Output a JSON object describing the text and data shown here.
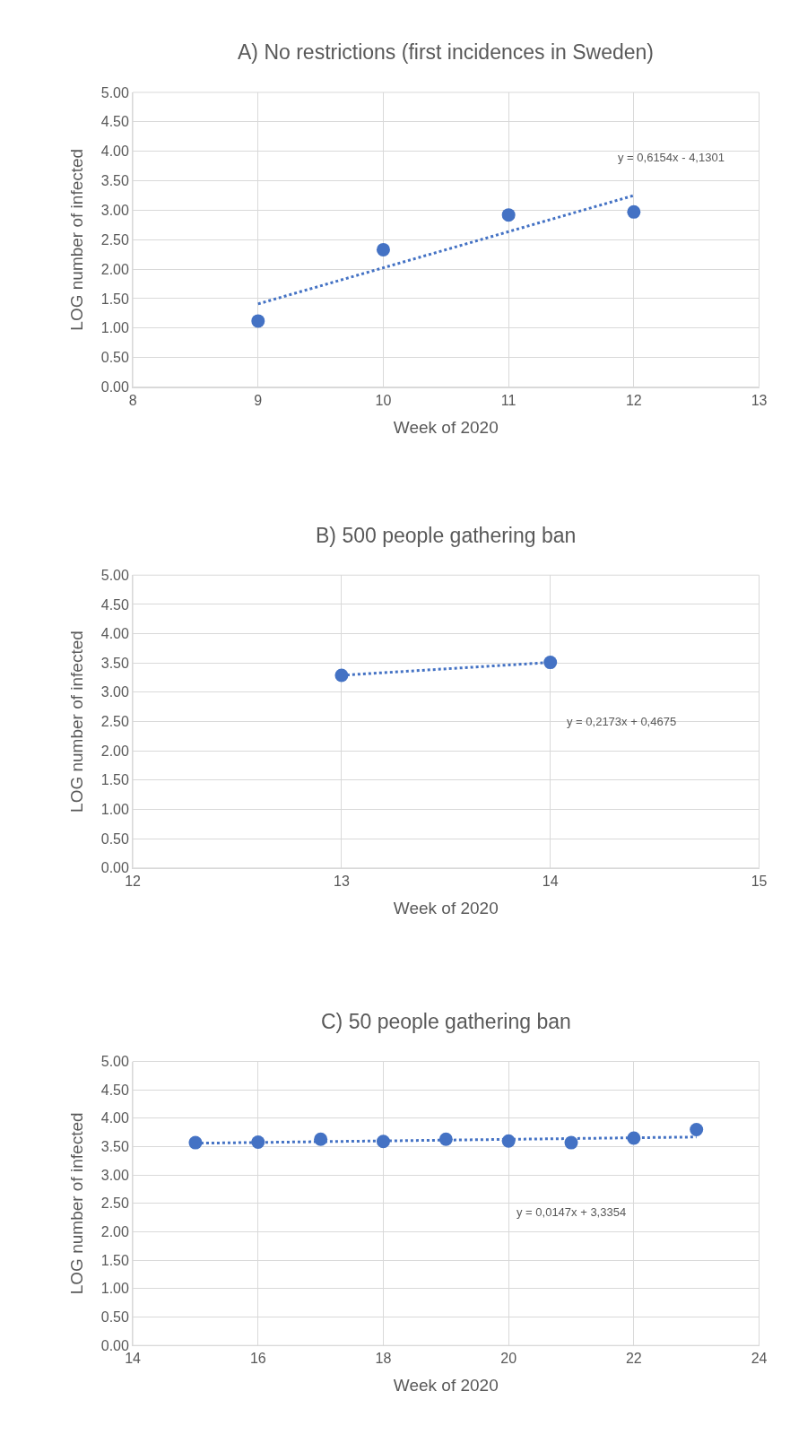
{
  "chart_data": [
    {
      "type": "scatter",
      "title": "A) No restrictions (first incidences in Sweden)",
      "xlabel": "Week of 2020",
      "ylabel": "LOG number of infected",
      "xlim": [
        8,
        13
      ],
      "xticks": [
        8,
        9,
        10,
        11,
        12,
        13
      ],
      "ylim": [
        0,
        5
      ],
      "yticks": [
        {
          "value": 0,
          "label": "0.00"
        },
        {
          "value": 0.5,
          "label": "0.50"
        },
        {
          "value": 1,
          "label": "1.00"
        },
        {
          "value": 1.5,
          "label": "1.50"
        },
        {
          "value": 2,
          "label": "2.00"
        },
        {
          "value": 2.5,
          "label": "2.50"
        },
        {
          "value": 3,
          "label": "3.00"
        },
        {
          "value": 3.5,
          "label": "3.50"
        },
        {
          "value": 4,
          "label": "4.00"
        },
        {
          "value": 4.5,
          "label": "4.50"
        },
        {
          "value": 5,
          "label": "5.00"
        }
      ],
      "grid": true,
      "series": [
        {
          "x": [
            9,
            10,
            11,
            12
          ],
          "values": [
            1.12,
            2.33,
            2.92,
            2.97
          ],
          "color": "#4472c4",
          "marker": "circle"
        },
        {
          "type": "line",
          "x": [
            9,
            12
          ],
          "values": [
            1.41,
            3.25
          ],
          "color": "#4472c4",
          "marker": "none",
          "line_style": "dotted"
        }
      ],
      "annotations": [
        "y = 0,6154x - 4,1301"
      ]
    },
    {
      "type": "scatter",
      "title": "B) 500 people gathering ban",
      "xlabel": "Week of 2020",
      "ylabel": "LOG number of infected",
      "xlim": [
        12,
        15
      ],
      "xticks": [
        12,
        13,
        14,
        15
      ],
      "ylim": [
        0,
        5
      ],
      "yticks": [
        {
          "value": 0,
          "label": "0.00"
        },
        {
          "value": 0.5,
          "label": "0.50"
        },
        {
          "value": 1,
          "label": "1.00"
        },
        {
          "value": 1.5,
          "label": "1.50"
        },
        {
          "value": 2,
          "label": "2.00"
        },
        {
          "value": 2.5,
          "label": "2.50"
        },
        {
          "value": 3,
          "label": "3.00"
        },
        {
          "value": 3.5,
          "label": "3.50"
        },
        {
          "value": 4,
          "label": "4.00"
        },
        {
          "value": 4.5,
          "label": "4.50"
        },
        {
          "value": 5,
          "label": "5.00"
        }
      ],
      "grid": true,
      "series": [
        {
          "x": [
            13,
            14
          ],
          "values": [
            3.29,
            3.51
          ],
          "color": "#4472c4",
          "marker": "circle"
        },
        {
          "type": "line",
          "x": [
            13,
            14
          ],
          "values": [
            3.29,
            3.51
          ],
          "color": "#4472c4",
          "marker": "none",
          "line_style": "dotted"
        }
      ],
      "annotations": [
        "y = 0,2173x + 0,4675"
      ]
    },
    {
      "type": "scatter",
      "title": "C) 50 people gathering ban",
      "xlabel": "Week of 2020",
      "ylabel": "LOG number of infected",
      "xlim": [
        14,
        24
      ],
      "xticks": [
        14,
        16,
        18,
        20,
        22,
        24
      ],
      "ylim": [
        0,
        5
      ],
      "yticks": [
        {
          "value": 0,
          "label": "0.00"
        },
        {
          "value": 0.5,
          "label": "0.50"
        },
        {
          "value": 1,
          "label": "1.00"
        },
        {
          "value": 1.5,
          "label": "1.50"
        },
        {
          "value": 2,
          "label": "2.00"
        },
        {
          "value": 2.5,
          "label": "2.50"
        },
        {
          "value": 3,
          "label": "3.00"
        },
        {
          "value": 3.5,
          "label": "3.50"
        },
        {
          "value": 4,
          "label": "4.00"
        },
        {
          "value": 4.5,
          "label": "4.50"
        },
        {
          "value": 5,
          "label": "5.00"
        }
      ],
      "grid": true,
      "series": [
        {
          "x": [
            15,
            16,
            17,
            18,
            19,
            20,
            21,
            22,
            23
          ],
          "values": [
            3.57,
            3.58,
            3.63,
            3.59,
            3.63,
            3.6,
            3.57,
            3.65,
            3.8
          ],
          "color": "#4472c4",
          "marker": "circle"
        },
        {
          "type": "line",
          "x": [
            15,
            23
          ],
          "values": [
            3.56,
            3.67
          ],
          "color": "#4472c4",
          "marker": "none",
          "line_style": "dotted"
        }
      ],
      "annotations": [
        "y = 0,0147x + 3,3354"
      ]
    }
  ]
}
